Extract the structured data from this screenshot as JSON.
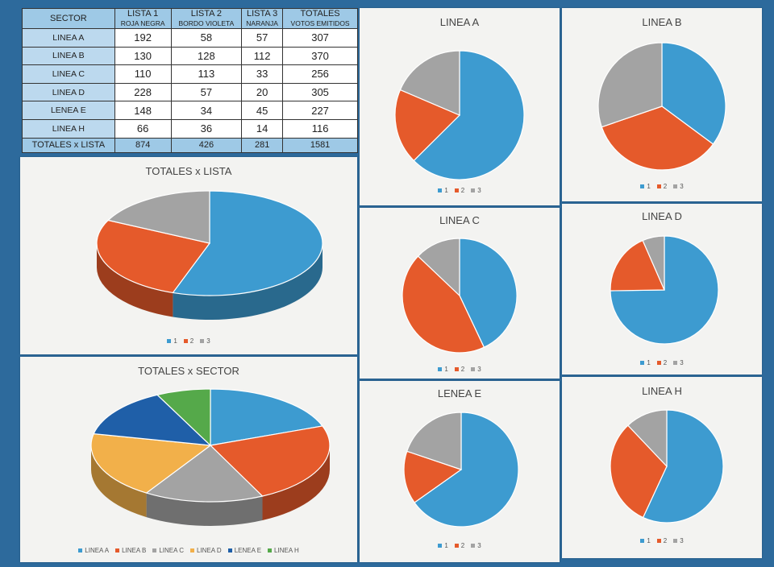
{
  "table": {
    "headers": [
      {
        "line1": "SECTOR",
        "line2": ""
      },
      {
        "line1": "LISTA 1",
        "line2": "ROJA NEGRA"
      },
      {
        "line1": "LISTA 2",
        "line2": "BORDO VIOLETA"
      },
      {
        "line1": "LISTA 3",
        "line2": "NARANJA"
      },
      {
        "line1": "TOTALES",
        "line2": "VOTOS EMITIDOS"
      }
    ],
    "rows": [
      [
        "LINEA A",
        "192",
        "58",
        "57",
        "307"
      ],
      [
        "LINEA B",
        "130",
        "128",
        "112",
        "370"
      ],
      [
        "LINEA C",
        "110",
        "113",
        "33",
        "256"
      ],
      [
        "LINEA D",
        "228",
        "57",
        "20",
        "305"
      ],
      [
        "LENEA E",
        "148",
        "34",
        "45",
        "227"
      ],
      [
        "LINEA H",
        "66",
        "36",
        "14",
        "116"
      ]
    ],
    "total_row": [
      "TOTALES x LISTA",
      "874",
      "426",
      "281",
      "1581"
    ]
  },
  "colors": {
    "blue": "#3d9bd0",
    "orange": "#e55a2b",
    "gray": "#a3a3a3",
    "yellow": "#f2b04a",
    "darkblue": "#1f5fa8",
    "green": "#55a94a"
  },
  "chart_data": [
    {
      "type": "pie",
      "title": "TOTALES x LISTA",
      "labels": [
        "1",
        "2",
        "3"
      ],
      "values": [
        874,
        426,
        281
      ],
      "legend": [
        "1",
        "2",
        "3"
      ]
    },
    {
      "type": "pie",
      "title": "TOTALES x SECTOR",
      "labels": [
        "LINEA A",
        "LINEA B",
        "LINEA C",
        "LINEA D",
        "LENEA E",
        "LINEA H"
      ],
      "values": [
        307,
        370,
        256,
        305,
        227,
        116
      ],
      "legend": [
        "LINEA A",
        "LINEA B",
        "LINEA C",
        "LINEA D",
        "LENEA E",
        "LINEA H"
      ]
    },
    {
      "type": "pie",
      "title": "LINEA A",
      "labels": [
        "1",
        "2",
        "3"
      ],
      "values": [
        192,
        58,
        57
      ],
      "legend": [
        "1",
        "2",
        "3"
      ]
    },
    {
      "type": "pie",
      "title": "LINEA B",
      "labels": [
        "1",
        "2",
        "3"
      ],
      "values": [
        130,
        128,
        112
      ],
      "legend": [
        "1",
        "2",
        "3"
      ]
    },
    {
      "type": "pie",
      "title": "LINEA C",
      "labels": [
        "1",
        "2",
        "3"
      ],
      "values": [
        110,
        113,
        33
      ],
      "legend": [
        "1",
        "2",
        "3"
      ]
    },
    {
      "type": "pie",
      "title": "LINEA D",
      "labels": [
        "1",
        "2",
        "3"
      ],
      "values": [
        228,
        57,
        20
      ],
      "legend": [
        "1",
        "2",
        "3"
      ]
    },
    {
      "type": "pie",
      "title": "LENEA E",
      "labels": [
        "1",
        "2",
        "3"
      ],
      "values": [
        148,
        34,
        45
      ],
      "legend": [
        "1",
        "2",
        "3"
      ]
    },
    {
      "type": "pie",
      "title": "LINEA H",
      "labels": [
        "1",
        "2",
        "3"
      ],
      "values": [
        66,
        36,
        14
      ],
      "legend": [
        "1",
        "2",
        "3"
      ]
    }
  ]
}
